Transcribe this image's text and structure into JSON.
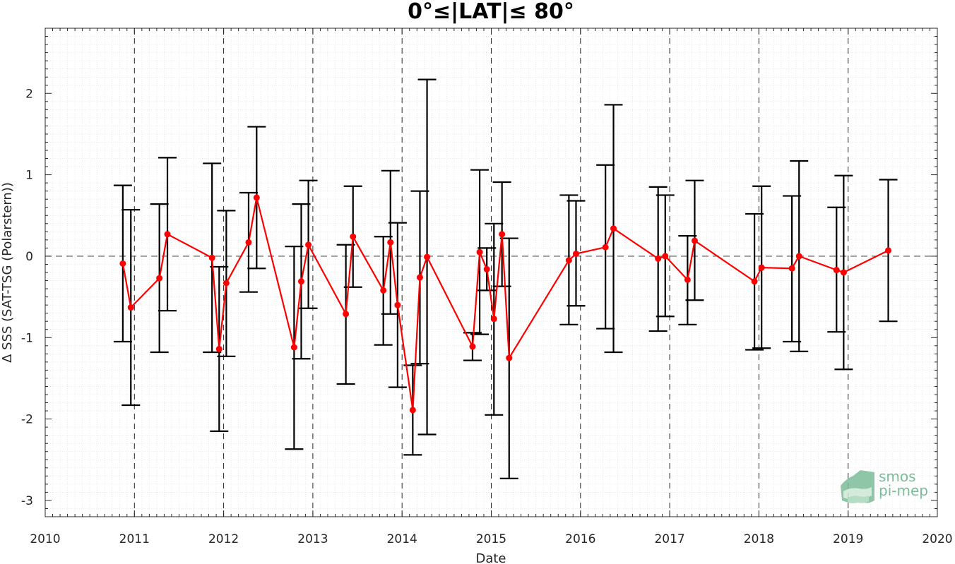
{
  "chart_data": {
    "type": "line",
    "title": "0°≤|LAT|≤ 80°",
    "xlabel": "Date",
    "ylabel": "Δ SSS (SAT-TSG (Polarstern))",
    "xlim": [
      2010,
      2020
    ],
    "ylim": [
      -3.2,
      2.8
    ],
    "x_ticks": [
      2010,
      2011,
      2012,
      2013,
      2014,
      2015,
      2016,
      2017,
      2018,
      2019,
      2020
    ],
    "x_tick_labels": [
      "2010",
      "2011",
      "2012",
      "2013",
      "2014",
      "2015",
      "2016",
      "2017",
      "2018",
      "2019",
      "2020"
    ],
    "y_ticks": [
      -3,
      -2,
      -1,
      0,
      1,
      2
    ],
    "y_tick_labels": [
      "-3",
      "-2",
      "-1",
      "0",
      "1",
      "2"
    ],
    "grid": "on (major dashed at years, minor dotted)",
    "reference_line": 0,
    "series": [
      {
        "color": "#ff0000",
        "error_bar_color": "#000000",
        "points": [
          {
            "x": 2010.87,
            "y": -0.09,
            "lo": -1.05,
            "hi": 0.87
          },
          {
            "x": 2010.96,
            "y": -0.63,
            "lo": -1.83,
            "hi": 0.57
          },
          {
            "x": 2011.28,
            "y": -0.27,
            "lo": -1.18,
            "hi": 0.64
          },
          {
            "x": 2011.37,
            "y": 0.27,
            "lo": -0.67,
            "hi": 1.21
          },
          {
            "x": 2011.87,
            "y": -0.02,
            "lo": -1.18,
            "hi": 1.14
          },
          {
            "x": 2011.95,
            "y": -1.14,
            "lo": -2.15,
            "hi": -0.13
          },
          {
            "x": 2012.03,
            "y": -0.33,
            "lo": -1.23,
            "hi": 0.56
          },
          {
            "x": 2012.28,
            "y": 0.17,
            "lo": -0.44,
            "hi": 0.78
          },
          {
            "x": 2012.37,
            "y": 0.72,
            "lo": -0.15,
            "hi": 1.59
          },
          {
            "x": 2012.79,
            "y": -1.12,
            "lo": -2.37,
            "hi": 0.12
          },
          {
            "x": 2012.87,
            "y": -0.31,
            "lo": -1.26,
            "hi": 0.64
          },
          {
            "x": 2012.95,
            "y": 0.14,
            "lo": -0.64,
            "hi": 0.93
          },
          {
            "x": 2013.37,
            "y": -0.71,
            "lo": -1.57,
            "hi": 0.14
          },
          {
            "x": 2013.45,
            "y": 0.24,
            "lo": -0.38,
            "hi": 0.86
          },
          {
            "x": 2013.79,
            "y": -0.42,
            "lo": -1.09,
            "hi": 0.24
          },
          {
            "x": 2013.87,
            "y": 0.17,
            "lo": -0.71,
            "hi": 1.05
          },
          {
            "x": 2013.95,
            "y": -0.6,
            "lo": -1.61,
            "hi": 0.41
          },
          {
            "x": 2014.12,
            "y": -1.89,
            "lo": -2.44,
            "hi": -1.34
          },
          {
            "x": 2014.2,
            "y": -0.26,
            "lo": -1.32,
            "hi": 0.8
          },
          {
            "x": 2014.28,
            "y": -0.01,
            "lo": -2.19,
            "hi": 2.17
          },
          {
            "x": 2014.79,
            "y": -1.11,
            "lo": -1.28,
            "hi": -0.94
          },
          {
            "x": 2014.87,
            "y": 0.05,
            "lo": -0.96,
            "hi": 1.06
          },
          {
            "x": 2014.95,
            "y": -0.16,
            "lo": -0.42,
            "hi": 0.1
          },
          {
            "x": 2015.03,
            "y": -0.77,
            "lo": -1.95,
            "hi": 0.4
          },
          {
            "x": 2015.12,
            "y": 0.27,
            "lo": -0.37,
            "hi": 0.91
          },
          {
            "x": 2015.2,
            "y": -1.25,
            "lo": -2.73,
            "hi": 0.22
          },
          {
            "x": 2015.87,
            "y": -0.05,
            "lo": -0.84,
            "hi": 0.75
          },
          {
            "x": 2015.95,
            "y": 0.03,
            "lo": -0.61,
            "hi": 0.68
          },
          {
            "x": 2016.28,
            "y": 0.11,
            "lo": -0.89,
            "hi": 1.12
          },
          {
            "x": 2016.37,
            "y": 0.34,
            "lo": -1.18,
            "hi": 1.86
          },
          {
            "x": 2016.87,
            "y": -0.03,
            "lo": -0.92,
            "hi": 0.85
          },
          {
            "x": 2016.95,
            "y": 0.0,
            "lo": -0.74,
            "hi": 0.75
          },
          {
            "x": 2017.2,
            "y": -0.29,
            "lo": -0.84,
            "hi": 0.25
          },
          {
            "x": 2017.28,
            "y": 0.19,
            "lo": -0.54,
            "hi": 0.93
          },
          {
            "x": 2017.95,
            "y": -0.31,
            "lo": -1.15,
            "hi": 0.52
          },
          {
            "x": 2018.03,
            "y": -0.14,
            "lo": -1.13,
            "hi": 0.86
          },
          {
            "x": 2018.37,
            "y": -0.15,
            "lo": -1.05,
            "hi": 0.74
          },
          {
            "x": 2018.45,
            "y": 0.0,
            "lo": -1.17,
            "hi": 1.17
          },
          {
            "x": 2018.87,
            "y": -0.17,
            "lo": -0.93,
            "hi": 0.6
          },
          {
            "x": 2018.95,
            "y": -0.2,
            "lo": -1.39,
            "hi": 0.99
          },
          {
            "x": 2019.45,
            "y": 0.07,
            "lo": -0.8,
            "hi": 0.94
          }
        ]
      }
    ]
  },
  "logo": {
    "line1": "smos",
    "line2": "pi-mep",
    "color": "#7bbd98"
  }
}
